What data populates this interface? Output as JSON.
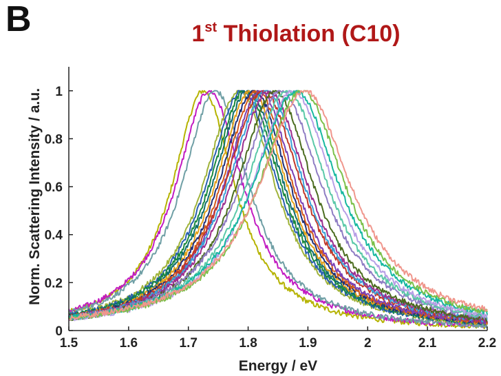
{
  "panel_label": "B",
  "title": {
    "prefix": "1",
    "superscript": "st",
    "main": " Thiolation (C10)"
  },
  "colors": {
    "title": "#b01818",
    "axis": "#222222"
  },
  "chart_data": {
    "type": "line",
    "xlabel": "Energy / eV",
    "ylabel": "Norm. Scattering Intensity / a.u.",
    "xlim": [
      1.5,
      2.2
    ],
    "ylim": [
      0,
      1.1
    ],
    "x_ticks": [
      "1.5",
      "1.6",
      "1.7",
      "1.8",
      "1.9",
      "2",
      "2.1",
      "2.2"
    ],
    "y_ticks": [
      "0",
      "0.2",
      "0.4",
      "0.6",
      "0.8",
      "1"
    ],
    "grid": false,
    "legend": "none",
    "series_shape": "Lorentzian-like normalized scattering spectra, peak value 1",
    "series": [
      {
        "peak_eV": 1.725,
        "fwhm_eV": 0.13,
        "color": "#b5b300"
      },
      {
        "peak_eV": 1.735,
        "fwhm_eV": 0.14,
        "color": "#c21bc2"
      },
      {
        "peak_eV": 1.745,
        "fwhm_eV": 0.14,
        "color": "#6f9fa5"
      },
      {
        "peak_eV": 1.785,
        "fwhm_eV": 0.15,
        "color": "#9fb33a"
      },
      {
        "peak_eV": 1.79,
        "fwhm_eV": 0.15,
        "color": "#2a5fb0"
      },
      {
        "peak_eV": 1.795,
        "fwhm_eV": 0.15,
        "color": "#1c8a3c"
      },
      {
        "peak_eV": 1.8,
        "fwhm_eV": 0.15,
        "color": "#0e6e6e"
      },
      {
        "peak_eV": 1.805,
        "fwhm_eV": 0.15,
        "color": "#e4a11b"
      },
      {
        "peak_eV": 1.81,
        "fwhm_eV": 0.15,
        "color": "#1f2f7a"
      },
      {
        "peak_eV": 1.815,
        "fwhm_eV": 0.15,
        "color": "#d45a1a"
      },
      {
        "peak_eV": 1.82,
        "fwhm_eV": 0.15,
        "color": "#7a3fb5"
      },
      {
        "peak_eV": 1.825,
        "fwhm_eV": 0.16,
        "color": "#c0392b"
      },
      {
        "peak_eV": 1.83,
        "fwhm_eV": 0.16,
        "color": "#3aa0d8"
      },
      {
        "peak_eV": 1.835,
        "fwhm_eV": 0.16,
        "color": "#9c2f8e"
      },
      {
        "peak_eV": 1.845,
        "fwhm_eV": 0.16,
        "color": "#4b6c1f"
      },
      {
        "peak_eV": 1.855,
        "fwhm_eV": 0.17,
        "color": "#8e7cc3"
      },
      {
        "peak_eV": 1.865,
        "fwhm_eV": 0.17,
        "color": "#5ac8a8"
      },
      {
        "peak_eV": 1.875,
        "fwhm_eV": 0.17,
        "color": "#b79fe6"
      },
      {
        "peak_eV": 1.88,
        "fwhm_eV": 0.18,
        "color": "#17b8a0"
      },
      {
        "peak_eV": 1.89,
        "fwhm_eV": 0.18,
        "color": "#7cc04a"
      },
      {
        "peak_eV": 1.895,
        "fwhm_eV": 0.19,
        "color": "#f0968c"
      }
    ]
  }
}
